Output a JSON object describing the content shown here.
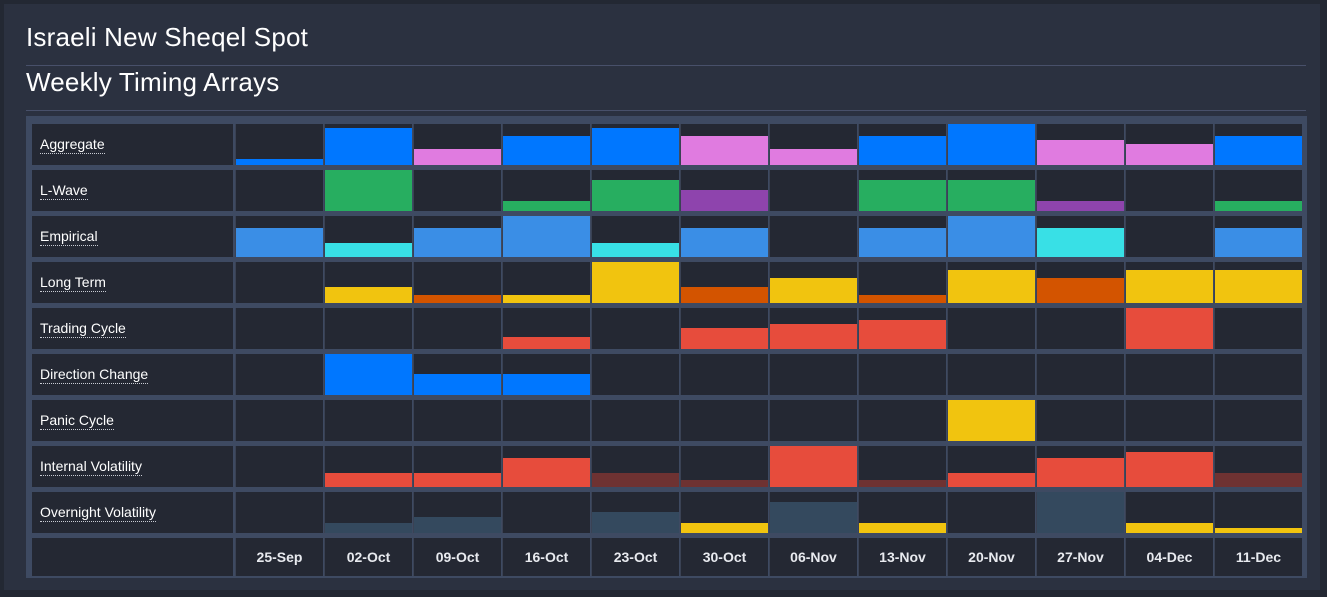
{
  "page": {
    "title": "Israeli New Sheqel Spot",
    "subtitle": "Weekly Timing Arrays"
  },
  "colors": {
    "background": "#232833",
    "panel": "#2b3140",
    "cell": "#242833",
    "grid_line": "#3e4a62"
  },
  "dates": [
    "25-Sep",
    "02-Oct",
    "09-Oct",
    "16-Oct",
    "23-Oct",
    "30-Oct",
    "06-Nov",
    "13-Nov",
    "20-Nov",
    "27-Nov",
    "04-Dec",
    "11-Dec"
  ],
  "rows": [
    {
      "key": "aggregate",
      "label": "Aggregate",
      "bars": [
        [
          0.15,
          "#0077ff"
        ],
        [
          0.9,
          "#0077ff"
        ],
        [
          0.4,
          "#e07be0"
        ],
        [
          0.7,
          "#0077ff"
        ],
        [
          0.9,
          "#0077ff"
        ],
        [
          0.7,
          "#e07be0"
        ],
        [
          0.4,
          "#e07be0"
        ],
        [
          0.7,
          "#0077ff"
        ],
        [
          1.0,
          "#0077ff"
        ],
        [
          0.6,
          "#e07be0"
        ],
        [
          0.5,
          "#e07be0"
        ],
        [
          0.7,
          "#0077ff"
        ]
      ]
    },
    {
      "key": "l-wave",
      "label": "L-Wave",
      "bars": [
        [
          0,
          ""
        ],
        [
          1.0,
          "#27ae60"
        ],
        [
          0,
          ""
        ],
        [
          0.25,
          "#27ae60"
        ],
        [
          0.75,
          "#27ae60"
        ],
        [
          0.5,
          "#8e44ad"
        ],
        [
          0,
          ""
        ],
        [
          0.75,
          "#27ae60"
        ],
        [
          0.75,
          "#27ae60"
        ],
        [
          0.25,
          "#8e44ad"
        ],
        [
          0,
          ""
        ],
        [
          0.25,
          "#27ae60"
        ]
      ]
    },
    {
      "key": "empirical",
      "label": "Empirical",
      "bars": [
        [
          0.7,
          "#3a8ee6"
        ],
        [
          0.35,
          "#38e0e6"
        ],
        [
          0.7,
          "#3a8ee6"
        ],
        [
          1.0,
          "#3a8ee6"
        ],
        [
          0.35,
          "#38e0e6"
        ],
        [
          0.7,
          "#3a8ee6"
        ],
        [
          0,
          ""
        ],
        [
          0.7,
          "#3a8ee6"
        ],
        [
          1.0,
          "#3a8ee6"
        ],
        [
          0.7,
          "#38e0e6"
        ],
        [
          0,
          ""
        ],
        [
          0.7,
          "#3a8ee6"
        ]
      ]
    },
    {
      "key": "long-term",
      "label": "Long Term",
      "bars": [
        [
          0,
          ""
        ],
        [
          0.4,
          "#f1c40f"
        ],
        [
          0.2,
          "#d35400"
        ],
        [
          0.2,
          "#f1c40f"
        ],
        [
          1.0,
          "#f1c40f"
        ],
        [
          0.4,
          "#d35400"
        ],
        [
          0.6,
          "#f1c40f"
        ],
        [
          0.2,
          "#d35400"
        ],
        [
          0.8,
          "#f1c40f"
        ],
        [
          0.6,
          "#d35400"
        ],
        [
          0.8,
          "#f1c40f"
        ],
        [
          0.8,
          "#f1c40f"
        ]
      ]
    },
    {
      "key": "trading-cycle",
      "label": "Trading Cycle",
      "bars": [
        [
          0,
          ""
        ],
        [
          0,
          ""
        ],
        [
          0,
          ""
        ],
        [
          0.3,
          "#e74c3c"
        ],
        [
          0,
          ""
        ],
        [
          0.5,
          "#e74c3c"
        ],
        [
          0.6,
          "#e74c3c"
        ],
        [
          0.7,
          "#e74c3c"
        ],
        [
          0,
          ""
        ],
        [
          0,
          ""
        ],
        [
          1.0,
          "#e74c3c"
        ],
        [
          0,
          ""
        ]
      ]
    },
    {
      "key": "direction-change",
      "label": "Direction Change",
      "bars": [
        [
          0,
          ""
        ],
        [
          1.0,
          "#0077ff"
        ],
        [
          0.5,
          "#0077ff"
        ],
        [
          0.5,
          "#0077ff"
        ],
        [
          0,
          ""
        ],
        [
          0,
          ""
        ],
        [
          0,
          ""
        ],
        [
          0,
          ""
        ],
        [
          0,
          ""
        ],
        [
          0,
          ""
        ],
        [
          0,
          ""
        ],
        [
          0,
          ""
        ]
      ]
    },
    {
      "key": "panic-cycle",
      "label": "Panic Cycle",
      "bars": [
        [
          0,
          ""
        ],
        [
          0,
          ""
        ],
        [
          0,
          ""
        ],
        [
          0,
          ""
        ],
        [
          0,
          ""
        ],
        [
          0,
          ""
        ],
        [
          0,
          ""
        ],
        [
          0,
          ""
        ],
        [
          1.0,
          "#f1c40f"
        ],
        [
          0,
          ""
        ],
        [
          0,
          ""
        ],
        [
          0
        ]
      ]
    },
    {
      "key": "internal-volatility",
      "label": "Internal Volatility",
      "bars": [
        [
          0,
          ""
        ],
        [
          0.35,
          "#e74c3c"
        ],
        [
          0.35,
          "#e74c3c"
        ],
        [
          0.7,
          "#e74c3c"
        ],
        [
          0.35,
          "#6e3232"
        ],
        [
          0.18,
          "#6e3232"
        ],
        [
          1.0,
          "#e74c3c"
        ],
        [
          0.18,
          "#6e3232"
        ],
        [
          0.35,
          "#e74c3c"
        ],
        [
          0.7,
          "#e74c3c"
        ],
        [
          0.85,
          "#e74c3c"
        ],
        [
          0.35,
          "#6e3232"
        ]
      ]
    },
    {
      "key": "overnight-volatility",
      "label": "Overnight Volatility",
      "bars": [
        [
          0,
          ""
        ],
        [
          0.25,
          "#34495e"
        ],
        [
          0.38,
          "#34495e"
        ],
        [
          0,
          ""
        ],
        [
          0.5,
          "#34495e"
        ],
        [
          0.25,
          "#f1c40f"
        ],
        [
          0.75,
          "#34495e"
        ],
        [
          0.25,
          "#f1c40f"
        ],
        [
          0,
          ""
        ],
        [
          1.0,
          "#34495e"
        ],
        [
          0.25,
          "#f1c40f"
        ],
        [
          0.12,
          "#f1c40f"
        ]
      ]
    }
  ]
}
